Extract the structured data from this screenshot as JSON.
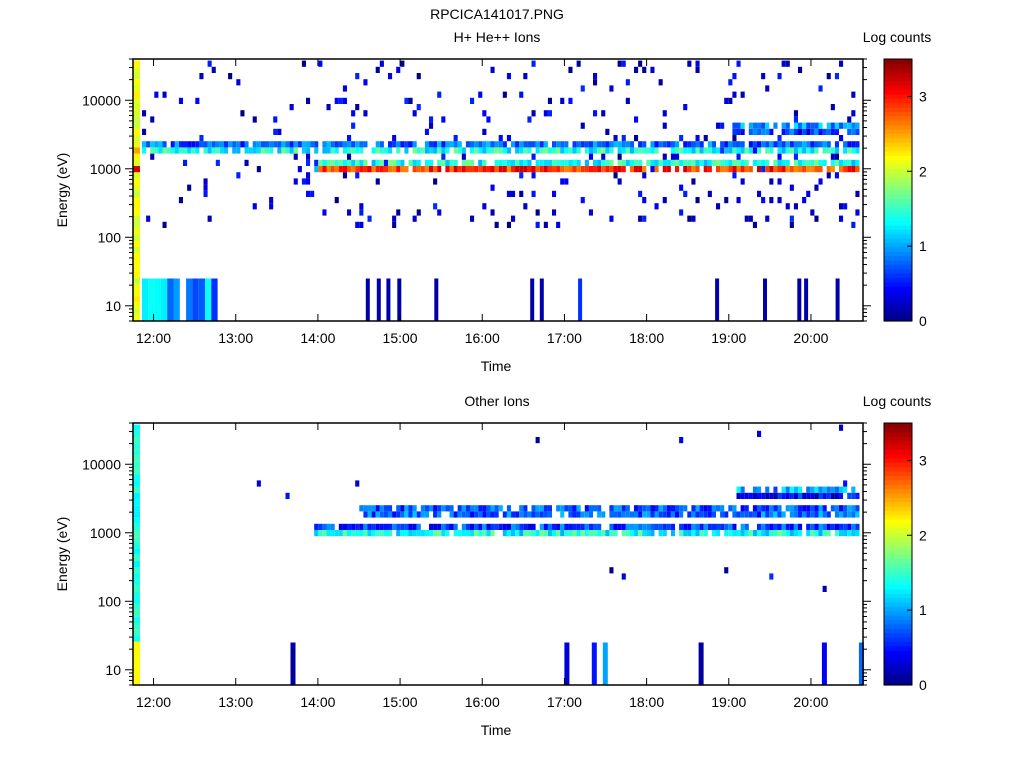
{
  "figure_title": "RPCICA141017.PNG",
  "chart_data": [
    {
      "type": "heatmap",
      "title": "H+ He++ Ions",
      "xlabel": "Time",
      "ylabel": "Energy (eV)",
      "yscale": "log",
      "ylim": [
        6,
        40000
      ],
      "xlim": [
        "11:45",
        "20:38"
      ],
      "x_ticks": [
        "12:00",
        "13:00",
        "14:00",
        "15:00",
        "16:00",
        "17:00",
        "18:00",
        "19:00",
        "20:00"
      ],
      "y_ticks": [
        "10",
        "100",
        "1000",
        "10000"
      ],
      "colorbar": {
        "label": "Log counts",
        "range": [
          0,
          3.5
        ],
        "ticks": [
          "0",
          "1",
          "2",
          "3"
        ]
      },
      "features": [
        {
          "name": "calibration-column",
          "t_start": "11:45",
          "t_end": "11:47",
          "e_range": [
            6,
            40000
          ],
          "log_counts": 2.1
        },
        {
          "name": "main-band-1keV",
          "t_start": "13:55",
          "t_end": "20:38",
          "e_center": 1050,
          "log_counts_peak": 3.2
        },
        {
          "name": "band-2keV",
          "t_start": "11:48",
          "t_end": "20:38",
          "e_center": 2000,
          "log_counts_peak": 1.6
        },
        {
          "name": "band-4keV",
          "t_start": "19:00",
          "t_end": "20:38",
          "e_center": 4200,
          "log_counts_peak": 1.2
        },
        {
          "name": "low-energy-bursts",
          "t_start": "11:48",
          "t_end": "12:42",
          "e_range": [
            6,
            25
          ],
          "log_counts": 0.8
        },
        {
          "name": "scattered-noise",
          "t_start": "11:48",
          "t_end": "20:38",
          "e_range": [
            6,
            40000
          ],
          "log_counts": 0.2
        }
      ]
    },
    {
      "type": "heatmap",
      "title": "Other Ions",
      "xlabel": "Time",
      "ylabel": "Energy (eV)",
      "yscale": "log",
      "ylim": [
        6,
        40000
      ],
      "xlim": [
        "11:45",
        "20:38"
      ],
      "x_ticks": [
        "12:00",
        "13:00",
        "14:00",
        "15:00",
        "16:00",
        "17:00",
        "18:00",
        "19:00",
        "20:00"
      ],
      "y_ticks": [
        "10",
        "100",
        "1000",
        "10000"
      ],
      "colorbar": {
        "label": "Log counts",
        "range": [
          0,
          3.5
        ],
        "ticks": [
          "0",
          "1",
          "2",
          "3"
        ]
      },
      "features": [
        {
          "name": "calibration-column",
          "t_start": "11:45",
          "t_end": "11:47",
          "e_range": [
            6,
            40000
          ],
          "log_counts": 1.4
        },
        {
          "name": "band-1keV",
          "t_start": "13:55",
          "t_end": "20:38",
          "e_center": 1050,
          "log_counts_peak": 1.5
        },
        {
          "name": "band-2keV",
          "t_start": "14:30",
          "t_end": "20:38",
          "e_center": 2100,
          "log_counts_peak": 1.1
        },
        {
          "name": "band-4keV",
          "t_start": "19:05",
          "t_end": "20:38",
          "e_center": 4300,
          "log_counts_peak": 1.1
        },
        {
          "name": "low-energy-spikes",
          "times": [
            "13:40",
            "17:00",
            "17:20",
            "17:28",
            "18:38",
            "20:08",
            "20:35"
          ],
          "e_range": [
            6,
            25
          ],
          "log_counts": 0.5
        }
      ]
    }
  ]
}
